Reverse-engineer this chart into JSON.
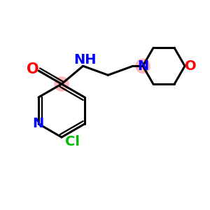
{
  "background_color": "#ffffff",
  "bond_color": "#000000",
  "atom_colors": {
    "O": "#ff0000",
    "N": "#0000ff",
    "Cl": "#00bb00",
    "C": "#000000"
  },
  "highlight_color": "#ffb0b0",
  "lw": 2.2,
  "fontsize": 14
}
